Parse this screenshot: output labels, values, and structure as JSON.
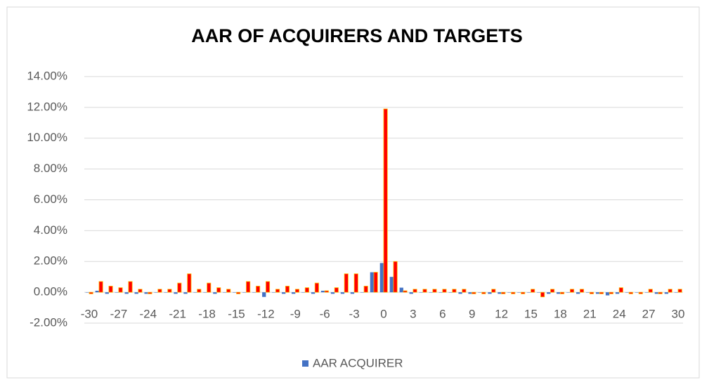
{
  "chart_data": {
    "type": "bar",
    "title": "AAR OF ACQUIRERS AND TARGETS",
    "categories": [
      "-30",
      null,
      null,
      "-27",
      null,
      null,
      "-24",
      null,
      null,
      "-21",
      null,
      null,
      "-18",
      null,
      null,
      "-15",
      null,
      null,
      "-12",
      null,
      null,
      "-9",
      null,
      null,
      "-6",
      null,
      null,
      "-3",
      null,
      null,
      "0",
      null,
      null,
      "3",
      null,
      null,
      "6",
      null,
      null,
      "9",
      null,
      null,
      "12",
      null,
      null,
      "15",
      null,
      null,
      "18",
      null,
      null,
      "21",
      null,
      null,
      "24",
      null,
      null,
      "27",
      null,
      null,
      "30"
    ],
    "series": [
      {
        "name": "AAR ACQUIRER",
        "color": "#4472c4",
        "values": [
          0.0,
          0.1,
          -0.1,
          0.0,
          -0.1,
          -0.1,
          -0.1,
          0.0,
          0.0,
          -0.1,
          -0.1,
          0.0,
          0.0,
          -0.1,
          0.0,
          0.0,
          0.0,
          0.0,
          -0.3,
          0.0,
          -0.1,
          -0.1,
          0.0,
          -0.1,
          0.1,
          -0.1,
          -0.1,
          -0.1,
          0.0,
          1.3,
          1.9,
          1.0,
          0.3,
          -0.1,
          0.0,
          0.0,
          0.0,
          0.0,
          -0.1,
          -0.1,
          0.0,
          -0.1,
          -0.1,
          0.0,
          0.0,
          0.0,
          0.0,
          -0.1,
          -0.1,
          0.0,
          -0.1,
          0.0,
          -0.1,
          -0.2,
          -0.1,
          0.0,
          0.0,
          0.0,
          -0.1,
          -0.1,
          0.0
        ]
      },
      {
        "color": "#ff0000",
        "values": [
          -0.1,
          0.7,
          0.4,
          0.3,
          0.7,
          0.2,
          -0.1,
          0.2,
          0.2,
          0.6,
          1.2,
          0.2,
          0.6,
          0.3,
          0.2,
          -0.1,
          0.7,
          0.4,
          0.7,
          0.2,
          0.4,
          0.2,
          0.3,
          0.6,
          0.1,
          0.3,
          1.2,
          1.2,
          0.4,
          1.3,
          11.9,
          2.0,
          0.1,
          0.2,
          0.2,
          0.2,
          0.2,
          0.2,
          0.2,
          -0.1,
          -0.1,
          0.2,
          -0.1,
          -0.1,
          -0.1,
          0.2,
          -0.3,
          0.2,
          -0.1,
          0.2,
          0.2,
          -0.1,
          -0.1,
          -0.1,
          0.3,
          -0.1,
          -0.1,
          0.2,
          -0.1,
          0.2,
          0.2
        ]
      }
    ],
    "ylim": [
      -2,
      14
    ],
    "yticks": [
      {
        "value": -2,
        "label": "-2.00%"
      },
      {
        "value": 0,
        "label": "0.00%"
      },
      {
        "value": 2,
        "label": "2.00%"
      },
      {
        "value": 4,
        "label": "4.00%"
      },
      {
        "value": 6,
        "label": "6.00%"
      },
      {
        "value": 8,
        "label": "8.00%"
      },
      {
        "value": 10,
        "label": "10.00%"
      },
      {
        "value": 12,
        "label": "12.00%"
      },
      {
        "value": 14,
        "label": "14.00%"
      }
    ],
    "grid": true,
    "legend": "bottom"
  }
}
